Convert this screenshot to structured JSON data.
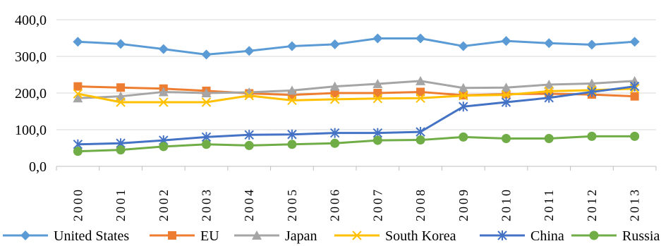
{
  "chart_data": {
    "type": "line",
    "categories": [
      "2000",
      "2001",
      "2002",
      "2003",
      "2004",
      "2005",
      "2006",
      "2007",
      "2008",
      "2009",
      "2010",
      "2011",
      "2012",
      "2013"
    ],
    "y_ticks": [
      "0,0",
      "100,0",
      "200,0",
      "300,0",
      "400,0"
    ],
    "ylim": [
      0,
      400
    ],
    "grid": true,
    "legend_position": "bottom",
    "series": [
      {
        "name": "United States",
        "color": "#5B9BD5",
        "marker": "diamond",
        "values": [
          340,
          334,
          320,
          305,
          315,
          328,
          333,
          349,
          349,
          328,
          342,
          336,
          332,
          340
        ]
      },
      {
        "name": "EU",
        "color": "#ED7D31",
        "marker": "square",
        "values": [
          218,
          215,
          212,
          206,
          199,
          195,
          200,
          200,
          203,
          194,
          197,
          198,
          196,
          191
        ]
      },
      {
        "name": "Japan",
        "color": "#A5A5A5",
        "marker": "triangle",
        "values": [
          186,
          191,
          203,
          200,
          202,
          207,
          218,
          225,
          233,
          214,
          215,
          223,
          226,
          233
        ]
      },
      {
        "name": "South Korea",
        "color": "#FFC000",
        "marker": "x",
        "values": [
          198,
          175,
          175,
          175,
          193,
          180,
          183,
          185,
          186,
          193,
          195,
          205,
          208,
          212
        ]
      },
      {
        "name": "China",
        "color": "#4472C4",
        "marker": "star",
        "values": [
          60,
          63,
          71,
          80,
          86,
          87,
          91,
          91,
          94,
          163,
          175,
          187,
          203,
          218
        ]
      },
      {
        "name": "Russia",
        "color": "#70AD47",
        "marker": "circle",
        "values": [
          41,
          45,
          54,
          60,
          57,
          60,
          63,
          71,
          72,
          80,
          76,
          76,
          82,
          82
        ]
      }
    ]
  }
}
